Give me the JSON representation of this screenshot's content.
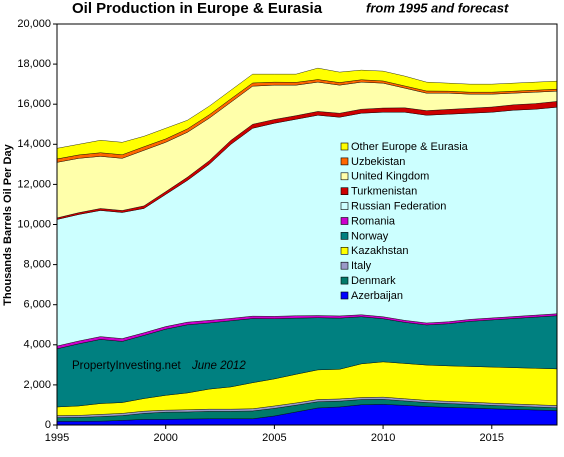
{
  "chart_data": {
    "type": "stacked-area",
    "title": "Oil Production in Europe & Eurasia",
    "subtitle": "from 1995 and forecast",
    "y_label": "Thousands Barrels Oil Per Day",
    "annotation": "PropertyInvesting.net",
    "annotation_date": "June 2012",
    "x": [
      1995,
      1996,
      1997,
      1998,
      1999,
      2000,
      2001,
      2002,
      2003,
      2004,
      2005,
      2006,
      2007,
      2008,
      2009,
      2010,
      2011,
      2012,
      2013,
      2014,
      2015,
      2016,
      2017,
      2018
    ],
    "xlim": [
      1995,
      2018
    ],
    "xticks": [
      1995,
      2000,
      2005,
      2010,
      2015
    ],
    "ylim": [
      0,
      20000
    ],
    "yticks": [
      0,
      {
        "value": 2000,
        "label": "2,000"
      },
      {
        "value": 4000,
        "label": "4,000"
      },
      {
        "value": 6000,
        "label": "6,000"
      },
      {
        "value": 8000,
        "label": "8,000"
      },
      {
        "value": 10000,
        "label": "10,000"
      },
      {
        "value": 12000,
        "label": "12,000"
      },
      {
        "value": 14000,
        "label": "14,000"
      },
      {
        "value": 16000,
        "label": "16,000"
      },
      {
        "value": 18000,
        "label": "18,000"
      },
      {
        "value": 20000,
        "label": "20,000"
      }
    ],
    "series": [
      {
        "name": "Azerbaijan",
        "color": "#0000ff",
        "values": [
          180,
          180,
          190,
          230,
          280,
          280,
          300,
          310,
          310,
          310,
          450,
          650,
          850,
          900,
          1010,
          1030,
          980,
          920,
          880,
          850,
          810,
          780,
          750,
          720
        ]
      },
      {
        "name": "Denmark",
        "color": "#007a6a",
        "values": [
          190,
          200,
          230,
          240,
          300,
          360,
          350,
          370,
          370,
          390,
          380,
          340,
          310,
          290,
          260,
          250,
          220,
          200,
          190,
          180,
          170,
          160,
          150,
          140
        ]
      },
      {
        "name": "Italy",
        "color": "#9a9ac8",
        "values": [
          100,
          100,
          110,
          110,
          110,
          100,
          110,
          110,
          110,
          110,
          120,
          110,
          110,
          110,
          100,
          110,
          110,
          110,
          110,
          110,
          110,
          110,
          110,
          110
        ]
      },
      {
        "name": "Kazakhstan",
        "color": "#ffff00",
        "values": [
          430,
          470,
          540,
          540,
          630,
          740,
          840,
          1000,
          1110,
          1300,
          1350,
          1430,
          1480,
          1480,
          1680,
          1760,
          1760,
          1760,
          1770,
          1780,
          1800,
          1810,
          1820,
          1830
        ]
      },
      {
        "name": "Norway",
        "color": "#008080",
        "values": [
          2900,
          3100,
          3200,
          3050,
          3150,
          3300,
          3400,
          3300,
          3300,
          3200,
          3000,
          2800,
          2600,
          2550,
          2350,
          2150,
          2050,
          2000,
          2100,
          2250,
          2350,
          2450,
          2550,
          2650
        ]
      },
      {
        "name": "Romania",
        "color": "#cc00cc",
        "values": [
          140,
          140,
          140,
          140,
          130,
          130,
          130,
          130,
          120,
          120,
          120,
          120,
          110,
          110,
          100,
          100,
          100,
          100,
          100,
          100,
          100,
          100,
          100,
          100
        ]
      },
      {
        "name": "Russian Federation",
        "color": "#ccffff",
        "values": [
          6310,
          6310,
          6290,
          6290,
          6200,
          6590,
          7070,
          7780,
          8680,
          9370,
          9630,
          9800,
          9990,
          9910,
          10050,
          10200,
          10380,
          10360,
          10350,
          10280,
          10260,
          10290,
          10270,
          10300
        ]
      },
      {
        "name": "Turkmenistan",
        "color": "#cc0000",
        "values": [
          80,
          90,
          100,
          100,
          130,
          140,
          160,
          180,
          200,
          200,
          190,
          180,
          190,
          200,
          200,
          210,
          220,
          230,
          240,
          250,
          260,
          270,
          280,
          290
        ]
      },
      {
        "name": "United Kingdom",
        "color": "#ffffaa",
        "values": [
          2770,
          2710,
          2600,
          2600,
          2770,
          2460,
          2240,
          2120,
          1900,
          1900,
          1710,
          1520,
          1460,
          1400,
          1350,
          1240,
          980,
          870,
          810,
          700,
          640,
          580,
          570,
          510
        ]
      },
      {
        "name": "Uzbekistan",
        "color": "#ff6600",
        "values": [
          170,
          170,
          180,
          180,
          180,
          170,
          170,
          170,
          170,
          160,
          150,
          140,
          130,
          130,
          120,
          110,
          110,
          110,
          100,
          100,
          100,
          100,
          100,
          100
        ]
      },
      {
        "name": "Other Europe & Eurasia",
        "color": "#ffff00",
        "values": [
          530,
          530,
          620,
          620,
          520,
          530,
          430,
          430,
          430,
          440,
          400,
          410,
          570,
          520,
          480,
          490,
          490,
          440,
          400,
          400,
          400,
          400,
          400,
          400
        ]
      }
    ]
  }
}
